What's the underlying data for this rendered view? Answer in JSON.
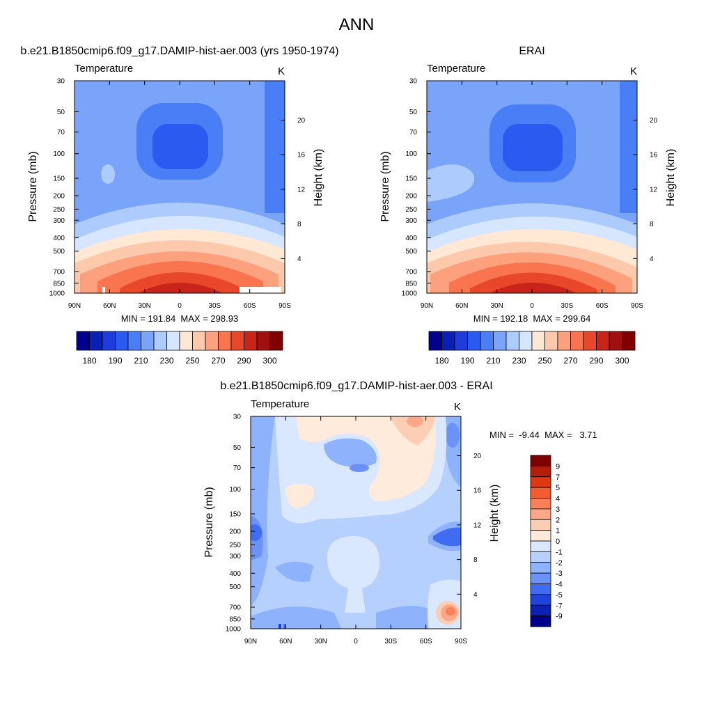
{
  "figure": {
    "title": "ANN"
  },
  "chart_data": [
    {
      "type": "heatmap",
      "title": "b.e21.B1850cmip6.f09_g17.DAMIP-hist-aer.003 (yrs 1950-1974)",
      "left_label": "Temperature",
      "units": "K",
      "ylabel": "Pressure (mb)",
      "y2label": "Height (km)",
      "x_ticks": [
        "90N",
        "60N",
        "30N",
        "0",
        "30S",
        "60S",
        "90S"
      ],
      "y_ticks": [
        "30",
        "50",
        "70",
        "100",
        "150",
        "200",
        "250",
        "300",
        "400",
        "500",
        "700",
        "850",
        "1000"
      ],
      "y2_ticks": [
        "20",
        "16",
        "12",
        "8",
        "4"
      ],
      "stats": "MIN = 191.84  MAX = 298.93",
      "min": 191.84,
      "max": 298.93,
      "colorbar": {
        "orientation": "horizontal",
        "tick_labels": [
          "180",
          "190",
          "210",
          "230",
          "250",
          "270",
          "290",
          "300"
        ],
        "colors": [
          "#00008c",
          "#0a1fb4",
          "#1e3cdc",
          "#2a5af0",
          "#4a7ef6",
          "#7aa4fa",
          "#aecbfe",
          "#d7e6ff",
          "#ffe8d4",
          "#fdc9ad",
          "#fca07e",
          "#f97550",
          "#e9472a",
          "#c8241a",
          "#a01010",
          "#800000"
        ]
      }
    },
    {
      "type": "heatmap",
      "title": "ERAI",
      "left_label": "Temperature",
      "units": "K",
      "ylabel": "Pressure (mb)",
      "y2label": "Height (km)",
      "x_ticks": [
        "90N",
        "60N",
        "30N",
        "0",
        "30S",
        "60S",
        "90S"
      ],
      "y_ticks": [
        "30",
        "50",
        "70",
        "100",
        "150",
        "200",
        "250",
        "300",
        "400",
        "500",
        "700",
        "850",
        "1000"
      ],
      "y2_ticks": [
        "20",
        "16",
        "12",
        "8",
        "4"
      ],
      "stats": "MIN = 192.18  MAX = 299.64",
      "min": 192.18,
      "max": 299.64,
      "colorbar": {
        "orientation": "horizontal",
        "tick_labels": [
          "180",
          "190",
          "210",
          "230",
          "250",
          "270",
          "290",
          "300"
        ],
        "colors": [
          "#00008c",
          "#0a1fb4",
          "#1e3cdc",
          "#2a5af0",
          "#4a7ef6",
          "#7aa4fa",
          "#aecbfe",
          "#d7e6ff",
          "#ffe8d4",
          "#fdc9ad",
          "#fca07e",
          "#f97550",
          "#e9472a",
          "#c8241a",
          "#a01010",
          "#800000"
        ]
      }
    },
    {
      "type": "heatmap",
      "title": "b.e21.B1850cmip6.f09_g17.DAMIP-hist-aer.003 - ERAI",
      "left_label": "Temperature",
      "units": "K",
      "ylabel": "Pressure (mb)",
      "y2label": "Height (km)",
      "x_ticks": [
        "90N",
        "60N",
        "30N",
        "0",
        "30S",
        "60S",
        "90S"
      ],
      "y_ticks": [
        "30",
        "50",
        "70",
        "100",
        "150",
        "200",
        "250",
        "300",
        "400",
        "500",
        "700",
        "850",
        "1000"
      ],
      "y2_ticks": [
        "20",
        "16",
        "12",
        "8",
        "4"
      ],
      "stats": "MIN =  -9.44  MAX =   3.71",
      "min": -9.44,
      "max": 3.71,
      "colorbar": {
        "orientation": "vertical",
        "tick_labels": [
          "9",
          "7",
          "5",
          "4",
          "3",
          "2",
          "1",
          "0",
          "-1",
          "-2",
          "-3",
          "-4",
          "-5",
          "-7",
          "-9"
        ],
        "colors": [
          "#800000",
          "#b41c0c",
          "#dc3814",
          "#f25c30",
          "#f98058",
          "#fca888",
          "#fdcdb4",
          "#ffebdc",
          "#d9e8ff",
          "#b6d0fe",
          "#8eb2fb",
          "#6a92f8",
          "#3f6cf0",
          "#1e44dc",
          "#0c22b4",
          "#00008c"
        ]
      }
    }
  ]
}
